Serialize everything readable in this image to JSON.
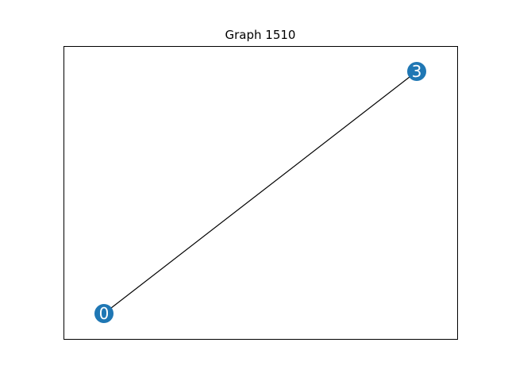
{
  "title": "Graph 1510",
  "colors": {
    "node_fill": "#1f77b4",
    "node_label": "#ffffff",
    "edge": "#000000",
    "frame": "#000000",
    "background": "#ffffff"
  },
  "graph": {
    "nodes": [
      {
        "id": "0",
        "label": "0"
      },
      {
        "id": "3",
        "label": "3"
      }
    ],
    "edges": [
      {
        "source": "0",
        "target": "3"
      }
    ]
  }
}
